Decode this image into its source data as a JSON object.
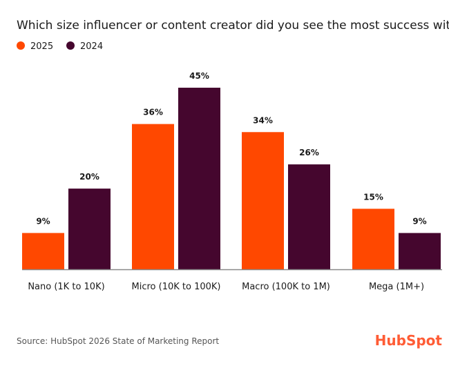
{
  "chart_data": {
    "type": "bar",
    "title": "Which size influencer or content creator did you see the most success with?",
    "categories": [
      "Nano (1K to 10K)",
      "Micro (10K to 100K)",
      "Macro (100K to 1M)",
      "Mega (1M+)"
    ],
    "series": [
      {
        "name": "2025",
        "color": "#ff4800",
        "values": [
          9,
          36,
          34,
          15
        ]
      },
      {
        "name": "2024",
        "color": "#45062e",
        "values": [
          20,
          45,
          26,
          9
        ]
      }
    ],
    "value_suffix": "%",
    "ylim": [
      0,
      45
    ],
    "grid": false,
    "legend": "top-left",
    "xlabel": "",
    "ylabel": ""
  },
  "source": "Source: HubSpot 2026 State of Marketing Report",
  "logo": "HubSpot"
}
